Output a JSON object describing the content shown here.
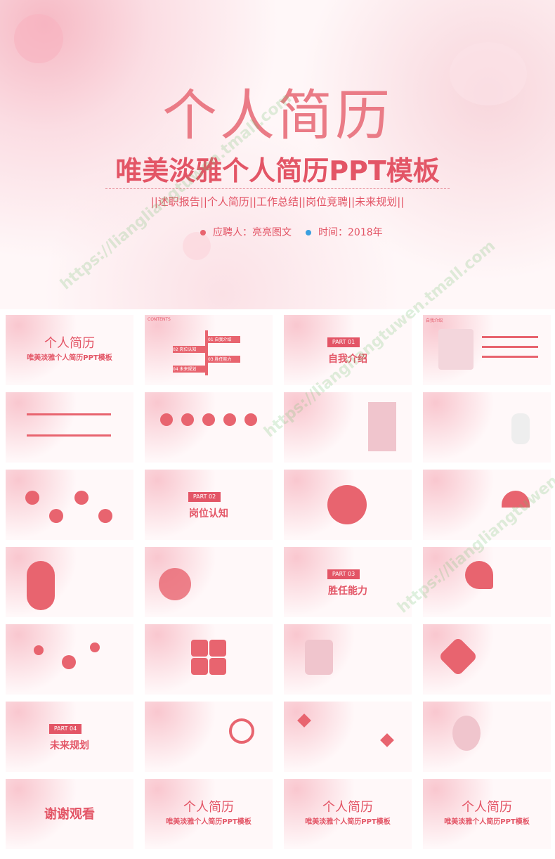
{
  "hero": {
    "title": "个人简历",
    "subtitle": "唯美淡雅个人简历PPT模板",
    "tags": "||述职报告||个人简历||工作总结||岗位竞聘||未来规划||",
    "applicant": "应聘人：亮亮图文",
    "time": "时间：2018年"
  },
  "watermark": "https://liangliangtuwen.tmall.com",
  "colors": {
    "accent": "#e35566",
    "soft": "#f6b9c4"
  },
  "slides": {
    "s1_title": "个人简历",
    "s1_sub": "唯美淡雅个人简历PPT模板",
    "s2_hdr": "CONTENTS",
    "s2_items": [
      "01 自我介绍",
      "02 岗位认知",
      "03 胜任能力",
      "04 未来规划"
    ],
    "s3_part": "PART 01",
    "s3_title": "自我介绍",
    "s4_hdr": "自我介绍",
    "s12_part": "PART 02",
    "s12_title": "岗位认知",
    "s19_part": "PART 03",
    "s19_title": "胜任能力",
    "s25_part": "PART 04",
    "s25_title": "未来规划",
    "s29_title": "谢谢观看",
    "end_title": "个人简历",
    "end_sub": "唯美淡雅个人简历PPT模板"
  }
}
